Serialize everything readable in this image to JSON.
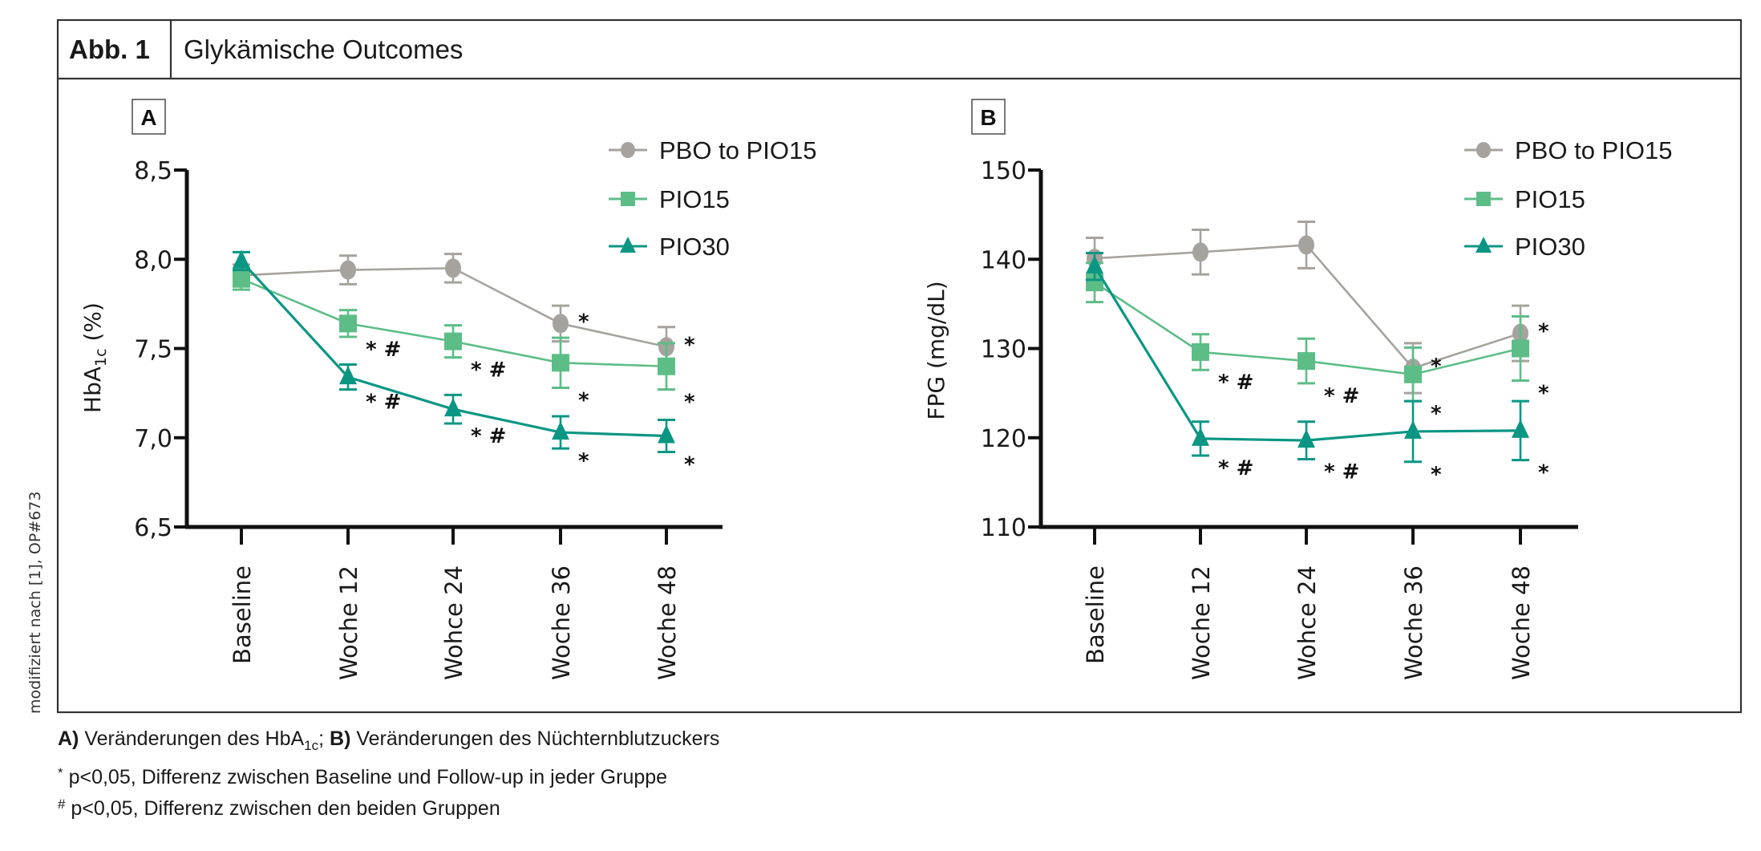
{
  "header": {
    "figure_number": "Abb. 1",
    "title": "Glykämische Outcomes"
  },
  "side_note": "modifiziert nach [1], OP#673",
  "captions": {
    "line1_a_bold": "A)",
    "line1_a_text": " Veränderungen des HbA",
    "line1_a_sub": "1c",
    "line1_sep": ";",
    "line1_b_bold": " B)",
    "line1_b_text": " Veränderungen des Nüchternblutzuckers",
    "line2_sym": "*",
    "line2_text": " p<0,05, Differenz zwischen Baseline und Follow-up in jeder Gruppe",
    "line3_sym": "#",
    "line3_text": " p<0,05, Differenz zwischen den beiden Gruppen"
  },
  "colors": {
    "pbo": "#a6a39e",
    "pio15": "#5dbd87",
    "pio30": "#0b9684"
  },
  "chart_data": [
    {
      "panel": "A",
      "type": "line",
      "title": "",
      "xlabel": "",
      "ylabel": "HbA1c (%)",
      "ylabel_main": "HbA",
      "ylabel_sub": "1c",
      "ylabel_unit": " (%)",
      "ylim": [
        6.5,
        8.5
      ],
      "yticks": [
        6.5,
        7.0,
        7.5,
        8.0,
        8.5
      ],
      "ytick_labels": [
        "6,5",
        "7,0",
        "7,5",
        "8,0",
        "8,5"
      ],
      "categories": [
        "Baseline",
        "Woche 12",
        "Wohce 24",
        "Woche 36",
        "Woche 48"
      ],
      "grid": false,
      "legend_position": "top-right",
      "series": [
        {
          "key": "pbo",
          "name": "PBO to PIO15",
          "marker": "circle",
          "values": [
            7.91,
            7.94,
            7.95,
            7.64,
            7.51
          ],
          "errors": [
            0.06,
            0.08,
            0.08,
            0.1,
            0.11
          ],
          "annotations": [
            "",
            "",
            "",
            "*",
            "*"
          ]
        },
        {
          "key": "pio15",
          "name": "PIO15",
          "marker": "square",
          "values": [
            7.89,
            7.64,
            7.54,
            7.42,
            7.4
          ],
          "errors": [
            0.06,
            0.075,
            0.09,
            0.14,
            0.13
          ],
          "annotations": [
            "",
            "*#",
            "*#",
            "*",
            "*"
          ]
        },
        {
          "key": "pio30",
          "name": "PIO30",
          "marker": "triangle",
          "values": [
            7.99,
            7.34,
            7.16,
            7.03,
            7.01
          ],
          "errors": [
            0.05,
            0.07,
            0.08,
            0.09,
            0.09
          ],
          "annotations": [
            "",
            "*#",
            "*#",
            "*",
            "*"
          ]
        }
      ]
    },
    {
      "panel": "B",
      "type": "line",
      "title": "",
      "xlabel": "",
      "ylabel": "FPG (mg/dL)",
      "ylabel_main": "FPG (mg/dL)",
      "ylabel_sub": "",
      "ylabel_unit": "",
      "ylim": [
        110,
        150
      ],
      "yticks": [
        110,
        120,
        130,
        140,
        150
      ],
      "ytick_labels": [
        "110",
        "120",
        "130",
        "140",
        "150"
      ],
      "categories": [
        "Baseline",
        "Woche 12",
        "Wohce 24",
        "Woche 36",
        "Woche 48"
      ],
      "grid": false,
      "legend_position": "top-right",
      "series": [
        {
          "key": "pbo",
          "name": "PBO to PIO15",
          "marker": "circle",
          "values": [
            140.1,
            140.8,
            141.6,
            127.8,
            131.7
          ],
          "errors": [
            2.3,
            2.5,
            2.6,
            2.8,
            3.1
          ],
          "annotations": [
            "",
            "",
            "",
            "*",
            "*"
          ]
        },
        {
          "key": "pio15",
          "name": "PIO15",
          "marker": "square",
          "values": [
            137.4,
            129.6,
            128.6,
            127.1,
            130.0
          ],
          "errors": [
            2.2,
            2.0,
            2.5,
            3.0,
            3.6
          ],
          "annotations": [
            "",
            "*#",
            "*#",
            "*",
            "*"
          ]
        },
        {
          "key": "pio30",
          "name": "PIO30",
          "marker": "triangle",
          "values": [
            139.2,
            119.9,
            119.7,
            120.7,
            120.8
          ],
          "errors": [
            1.5,
            1.9,
            2.1,
            3.4,
            3.3
          ],
          "annotations": [
            "",
            "*#",
            "*#",
            "*",
            "*"
          ]
        }
      ]
    }
  ]
}
